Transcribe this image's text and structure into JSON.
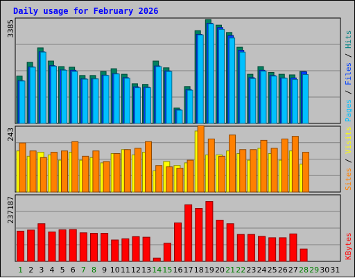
{
  "chart_data": {
    "type": "bar",
    "title": "Daily usage for February 2026",
    "days": [
      "1",
      "2",
      "3",
      "4",
      "5",
      "6",
      "7",
      "8",
      "9",
      "10",
      "11",
      "12",
      "13",
      "14",
      "15",
      "16",
      "17",
      "18",
      "19",
      "20",
      "21",
      "22",
      "23",
      "24",
      "25",
      "26",
      "27",
      "28",
      "29",
      "30",
      "31"
    ],
    "weekend_days": [
      "1",
      "7",
      "8",
      "14",
      "15",
      "21",
      "22",
      "28",
      "29"
    ],
    "panels": [
      {
        "name": "pages-files-hits",
        "ymax_label": "3385",
        "ymax": 3385,
        "legend": [
          {
            "text": "Pages",
            "color": "#00c0ff"
          },
          {
            "text": " / ",
            "color": "#000000"
          },
          {
            "text": "Files",
            "color": "#0040ff"
          },
          {
            "text": " / ",
            "color": "#000000"
          },
          {
            "text": "Hits",
            "color": "#008080"
          }
        ],
        "series": [
          {
            "name": "Hits",
            "color": "#008060",
            "values": [
              1540,
              1990,
              2460,
              2030,
              1850,
              1830,
              1560,
              1560,
              1690,
              1780,
              1600,
              1290,
              1270,
              2030,
              1810,
              500,
              1200,
              3020,
              3380,
              3200,
              2960,
              2480,
              1600,
              1850,
              1660,
              1600,
              1580,
              1690,
              0,
              0,
              0
            ]
          },
          {
            "name": "Files",
            "color": "#0040ff",
            "values": [
              1390,
              1840,
              2330,
              1880,
              1740,
              1730,
              1450,
              1450,
              1570,
              1620,
              1490,
              1190,
              1180,
              1870,
              1710,
              450,
              1100,
              2900,
              3260,
              3120,
              2860,
              2380,
              1490,
              1730,
              1560,
              1480,
              1480,
              1680,
              0,
              0,
              0
            ]
          },
          {
            "name": "Pages",
            "color": "#00c0ff",
            "values": [
              1380,
              1830,
              2320,
              1860,
              1730,
              1690,
              1440,
              1450,
              1560,
              1610,
              1470,
              1160,
              1160,
              1850,
              1690,
              430,
              1080,
              2880,
              3240,
              3060,
              2780,
              2320,
              1460,
              1700,
              1540,
              1470,
              1430,
              1590,
              0,
              0,
              0
            ]
          }
        ]
      },
      {
        "name": "sites-visits",
        "ymax_label": "243",
        "ymax": 243,
        "legend": [
          {
            "text": "Sites",
            "color": "#ff8000"
          },
          {
            "text": " / ",
            "color": "#000000"
          },
          {
            "text": "Visits",
            "color": "#ffff00"
          }
        ],
        "series": [
          {
            "name": "Visits",
            "color": "#ffff00",
            "values": [
              155,
              135,
              150,
              140,
              120,
              150,
              120,
              130,
              110,
              145,
              160,
              140,
              150,
              80,
              115,
              100,
              110,
              230,
              140,
              140,
              155,
              145,
              120,
              165,
              145,
              120,
              155,
              105,
              0,
              0,
              0
            ]
          },
          {
            "name": "Sites",
            "color": "#ff8000",
            "values": [
              185,
              155,
              130,
              150,
              155,
              190,
              135,
              155,
              115,
              145,
              160,
              165,
              190,
              100,
              95,
              90,
              120,
              250,
              200,
              135,
              215,
              160,
              160,
              195,
              165,
              200,
              210,
              150,
              0,
              0,
              0
            ]
          }
        ]
      },
      {
        "name": "kbytes",
        "ymax_label": "237187",
        "ymax": 237187,
        "legend": [
          {
            "text": "KBytes",
            "color": "#ff0000"
          }
        ],
        "series": [
          {
            "name": "KBytes",
            "color": "#ff0000",
            "values": [
              110000,
              114000,
              137000,
              107000,
              115000,
              116000,
              104000,
              102000,
              102000,
              78000,
              82000,
              90000,
              88000,
              12000,
              66000,
              140000,
              206000,
              193000,
              218000,
              150000,
              137000,
              98000,
              98000,
              91000,
              86000,
              86000,
              100000,
              45000,
              0,
              0,
              0
            ]
          }
        ]
      }
    ]
  }
}
